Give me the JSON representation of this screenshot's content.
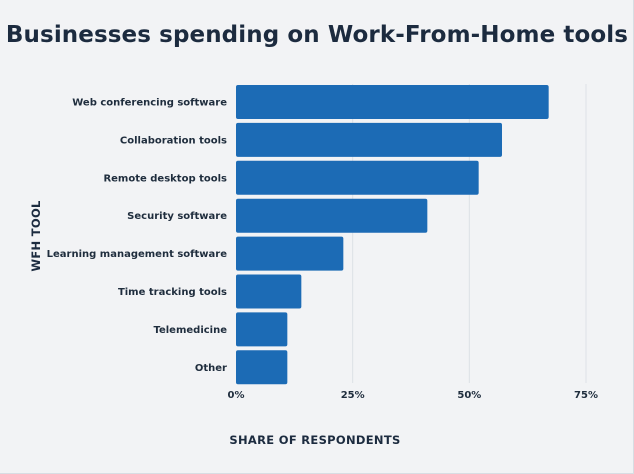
{
  "chart_data": {
    "type": "bar",
    "orientation": "horizontal",
    "title": "Businesses spending on Work-From-Home tools",
    "xlabel": "SHARE OF RESPONDENTS",
    "ylabel": "WFH TOOL",
    "categories": [
      "Web conferencing software",
      "Collaboration tools",
      "Remote desktop tools",
      "Security software",
      "Learning management software",
      "Time tracking tools",
      "Telemedicine",
      "Other"
    ],
    "values": [
      67,
      57,
      52,
      41,
      23,
      14,
      11,
      11
    ],
    "xlim": [
      0,
      75
    ],
    "xticks": [
      0,
      25,
      50,
      75
    ],
    "xtick_labels": [
      "0%",
      "25%",
      "50%",
      "75%"
    ],
    "grid": true,
    "bar_color": "#1c6bb5"
  }
}
